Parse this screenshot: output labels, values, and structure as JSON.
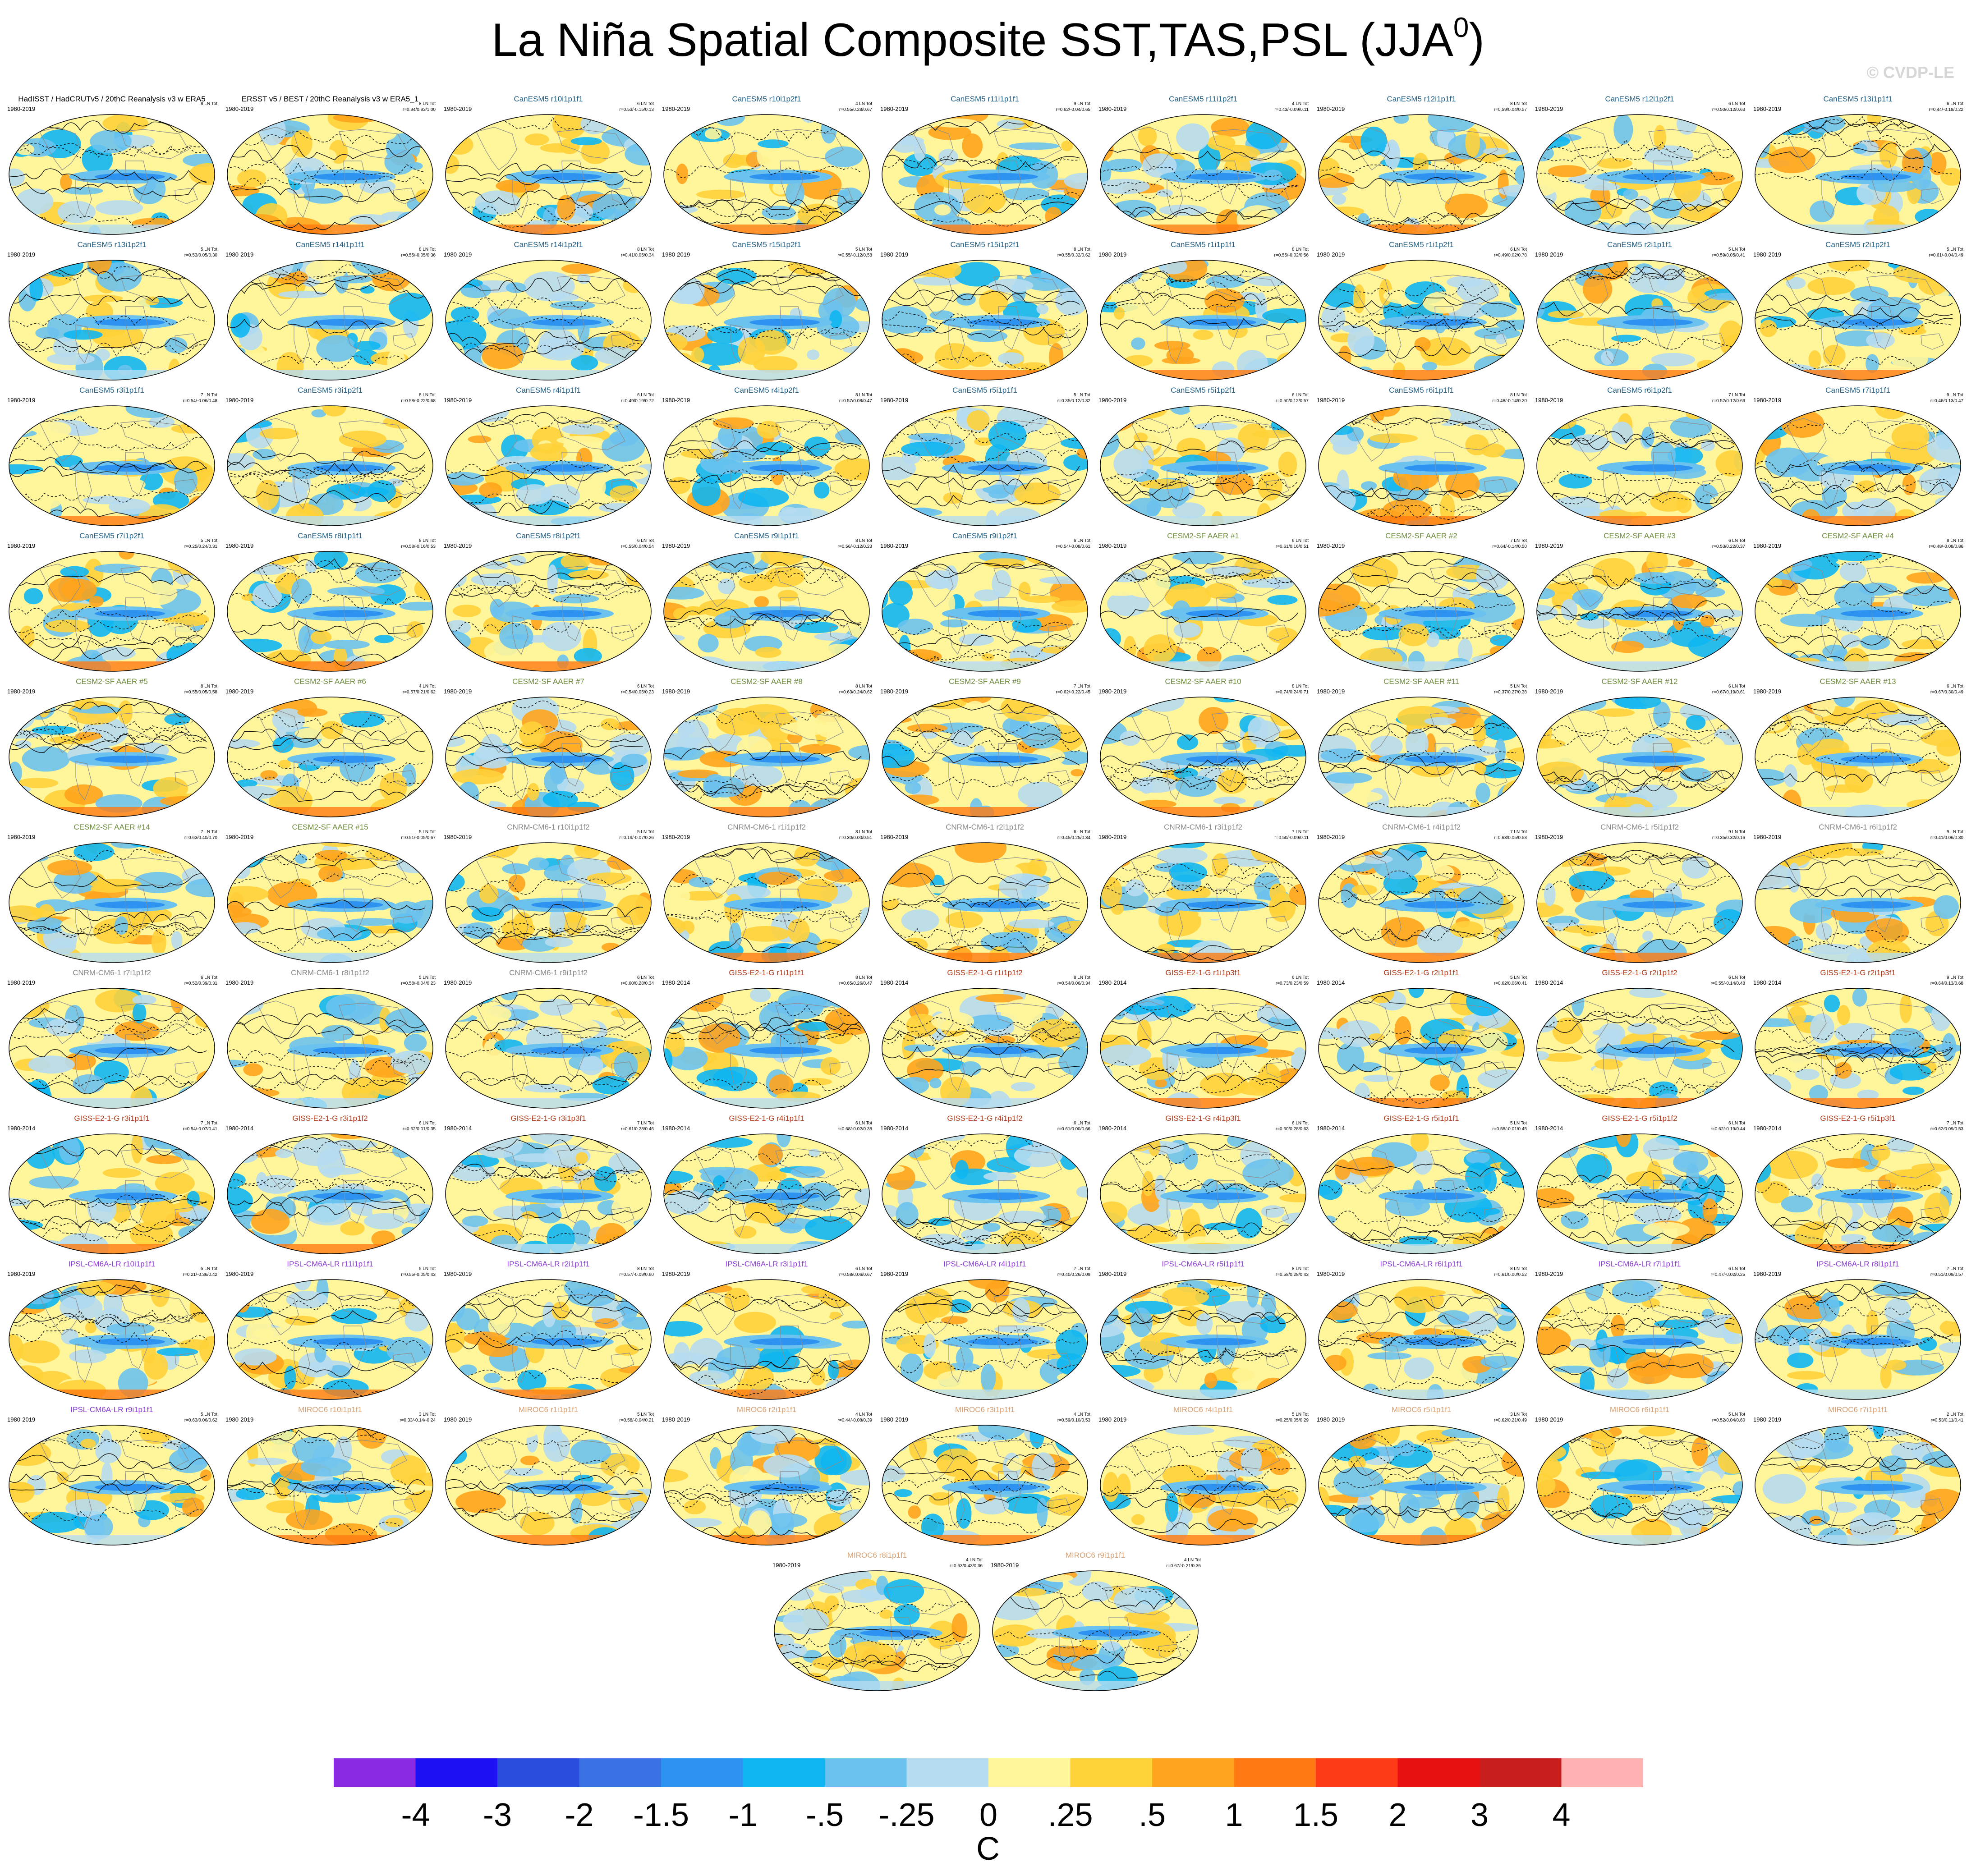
{
  "title": "La Niña Spatial Composite SST,TAS,PSL (JJA",
  "title_sup": "0",
  "title_close": ")",
  "watermark": "© CVDP-LE",
  "colorbar": {
    "colors": [
      "#8a2be2",
      "#1e10f5",
      "#2a4de0",
      "#3a72e6",
      "#2d92f0",
      "#10b6f2",
      "#6cc2ee",
      "#b6dcf0",
      "#fff59a",
      "#ffd23a",
      "#ffa41c",
      "#ff7a12",
      "#ff3a16",
      "#e81010",
      "#c81e1e",
      "#ffb2b2"
    ],
    "labels": [
      "-4",
      "-3",
      "-2",
      "-1.5",
      "-1",
      "-.5",
      "-.25",
      "0",
      ".25",
      ".5",
      "1",
      "1.5",
      "2",
      "3",
      "4"
    ],
    "unit": "C"
  },
  "panels": [
    {
      "title": "HadISST / HadCRUTv5 / 20thC Reanalysis v3 w ERA5",
      "years": "1980-2019",
      "count": "8 LN Tot",
      "stats": "",
      "color": "#000000"
    },
    {
      "title": "ERSST v5 / BEST / 20thC Reanalysis v3 w ERA5_1",
      "years": "1980-2019",
      "count": "8 LN Tot",
      "stats": "r=0.94/0.93/1.00",
      "color": "#000000"
    },
    {
      "title": "CanESM5 r10i1p1f1",
      "years": "1980-2019",
      "count": "6 LN Tot",
      "stats": "r=0.53/-0.15/0.13",
      "color": "#1f5f86"
    },
    {
      "title": "CanESM5 r10i1p2f1",
      "years": "1980-2019",
      "count": "4 LN Tot",
      "stats": "r=0.55/0.28/0.67",
      "color": "#1f5f86"
    },
    {
      "title": "CanESM5 r11i1p1f1",
      "years": "1980-2019",
      "count": "9 LN Tot",
      "stats": "r=0.62/-0.04/0.65",
      "color": "#1f5f86"
    },
    {
      "title": "CanESM5 r11i1p2f1",
      "years": "1980-2019",
      "count": "4 LN Tot",
      "stats": "r=0.43/-0.09/0.11",
      "color": "#1f5f86"
    },
    {
      "title": "CanESM5 r12i1p1f1",
      "years": "1980-2019",
      "count": "8 LN Tot",
      "stats": "r=0.59/0.04/0.57",
      "color": "#1f5f86"
    },
    {
      "title": "CanESM5 r12i1p2f1",
      "years": "1980-2019",
      "count": "6 LN Tot",
      "stats": "r=0.50/0.12/0.63",
      "color": "#1f5f86"
    },
    {
      "title": "CanESM5 r13i1p1f1",
      "years": "1980-2019",
      "count": "6 LN Tot",
      "stats": "r=0.44/-0.18/0.22",
      "color": "#1f5f86"
    },
    {
      "title": "CanESM5 r13i1p2f1",
      "years": "1980-2019",
      "count": "5 LN Tot",
      "stats": "r=0.53/0.05/0.30",
      "color": "#1f5f86"
    },
    {
      "title": "CanESM5 r14i1p1f1",
      "years": "1980-2019",
      "count": "8 LN Tot",
      "stats": "r=0.55/-0.05/0.36",
      "color": "#1f5f86"
    },
    {
      "title": "CanESM5 r14i1p2f1",
      "years": "1980-2019",
      "count": "8 LN Tot",
      "stats": "r=0.41/0.05/0.34",
      "color": "#1f5f86"
    },
    {
      "title": "CanESM5 r15i1p2f1",
      "years": "1980-2019",
      "count": "5 LN Tot",
      "stats": "r=0.55/-0.12/0.58",
      "color": "#1f5f86"
    },
    {
      "title": "CanESM5 r15i1p2f1",
      "years": "1980-2019",
      "count": "8 LN Tot",
      "stats": "r=0.55/0.32/0.62",
      "color": "#1f5f86"
    },
    {
      "title": "CanESM5 r1i1p1f1",
      "years": "1980-2019",
      "count": "8 LN Tot",
      "stats": "r=0.55/-0.02/0.56",
      "color": "#1f5f86"
    },
    {
      "title": "CanESM5 r1i1p2f1",
      "years": "1980-2019",
      "count": "6 LN Tot",
      "stats": "r=0.49/0.02/0.78",
      "color": "#1f5f86"
    },
    {
      "title": "CanESM5 r2i1p1f1",
      "years": "1980-2019",
      "count": "5 LN Tot",
      "stats": "r=0.59/0.05/0.41",
      "color": "#1f5f86"
    },
    {
      "title": "CanESM5 r2i1p2f1",
      "years": "1980-2019",
      "count": "5 LN Tot",
      "stats": "r=0.61/-0.04/0.49",
      "color": "#1f5f86"
    },
    {
      "title": "CanESM5 r3i1p1f1",
      "years": "1980-2019",
      "count": "7 LN Tot",
      "stats": "r=0.54/-0.06/0.48",
      "color": "#1f5f86"
    },
    {
      "title": "CanESM5 r3i1p2f1",
      "years": "1980-2019",
      "count": "8 LN Tot",
      "stats": "r=0.58/-0.22/0.68",
      "color": "#1f5f86"
    },
    {
      "title": "CanESM5 r4i1p1f1",
      "years": "1980-2019",
      "count": "6 LN Tot",
      "stats": "r=0.49/0.19/0.72",
      "color": "#1f5f86"
    },
    {
      "title": "CanESM5 r4i1p2f1",
      "years": "1980-2019",
      "count": "8 LN Tot",
      "stats": "r=0.57/0.08/0.47",
      "color": "#1f5f86"
    },
    {
      "title": "CanESM5 r5i1p1f1",
      "years": "1980-2019",
      "count": "5 LN Tot",
      "stats": "r=0.35/0.12/0.32",
      "color": "#1f5f86"
    },
    {
      "title": "CanESM5 r5i1p2f1",
      "years": "1980-2019",
      "count": "6 LN Tot",
      "stats": "r=0.50/0.12/0.57",
      "color": "#1f5f86"
    },
    {
      "title": "CanESM5 r6i1p1f1",
      "years": "1980-2019",
      "count": "8 LN Tot",
      "stats": "r=0.48/-0.14/0.20",
      "color": "#1f5f86"
    },
    {
      "title": "CanESM5 r6i1p2f1",
      "years": "1980-2019",
      "count": "7 LN Tot",
      "stats": "r=0.52/0.12/0.63",
      "color": "#1f5f86"
    },
    {
      "title": "CanESM5 r7i1p1f1",
      "years": "1980-2019",
      "count": "9 LN Tot",
      "stats": "r=0.46/0.13/0.47",
      "color": "#1f5f86"
    },
    {
      "title": "CanESM5 r7i1p2f1",
      "years": "1980-2019",
      "count": "5 LN Tot",
      "stats": "r=0.25/0.24/0.31",
      "color": "#1f5f86"
    },
    {
      "title": "CanESM5 r8i1p1f1",
      "years": "1980-2019",
      "count": "8 LN Tot",
      "stats": "r=0.58/-0.16/0.53",
      "color": "#1f5f86"
    },
    {
      "title": "CanESM5 r8i1p2f1",
      "years": "1980-2019",
      "count": "6 LN Tot",
      "stats": "r=0.55/0.04/0.54",
      "color": "#1f5f86"
    },
    {
      "title": "CanESM5 r9i1p1f1",
      "years": "1980-2019",
      "count": "8 LN Tot",
      "stats": "r=0.56/-0.12/0.23",
      "color": "#1f5f86"
    },
    {
      "title": "CanESM5 r9i1p2f1",
      "years": "1980-2019",
      "count": "6 LN Tot",
      "stats": "r=0.54/-0.08/0.61",
      "color": "#1f5f86"
    },
    {
      "title": "CESM2-SF AAER #1",
      "years": "1980-2019",
      "count": "6 LN Tot",
      "stats": "r=0.61/0.16/0.51",
      "color": "#6e8c3c"
    },
    {
      "title": "CESM2-SF AAER #2",
      "years": "1980-2019",
      "count": "7 LN Tot",
      "stats": "r=0.64/-0.14/0.50",
      "color": "#6e8c3c"
    },
    {
      "title": "CESM2-SF AAER #3",
      "years": "1980-2019",
      "count": "6 LN Tot",
      "stats": "r=0.53/0.22/0.37",
      "color": "#6e8c3c"
    },
    {
      "title": "CESM2-SF AAER #4",
      "years": "1980-2019",
      "count": "8 LN Tot",
      "stats": "r=0.48/-0.08/0.86",
      "color": "#6e8c3c"
    },
    {
      "title": "CESM2-SF AAER #5",
      "years": "1980-2019",
      "count": "8 LN Tot",
      "stats": "r=0.55/0.05/0.58",
      "color": "#6e8c3c"
    },
    {
      "title": "CESM2-SF AAER #6",
      "years": "1980-2019",
      "count": "4 LN Tot",
      "stats": "r=0.57/0.21/0.62",
      "color": "#6e8c3c"
    },
    {
      "title": "CESM2-SF AAER #7",
      "years": "1980-2019",
      "count": "6 LN Tot",
      "stats": "r=0.54/0.05/0.23",
      "color": "#6e8c3c"
    },
    {
      "title": "CESM2-SF AAER #8",
      "years": "1980-2019",
      "count": "8 LN Tot",
      "stats": "r=0.63/0.24/0.62",
      "color": "#6e8c3c"
    },
    {
      "title": "CESM2-SF AAER #9",
      "years": "1980-2019",
      "count": "7 LN Tot",
      "stats": "r=0.62/-0.22/0.45",
      "color": "#6e8c3c"
    },
    {
      "title": "CESM2-SF AAER #10",
      "years": "1980-2019",
      "count": "8 LN Tot",
      "stats": "r=0.74/0.24/0.71",
      "color": "#6e8c3c"
    },
    {
      "title": "CESM2-SF AAER #11",
      "years": "1980-2019",
      "count": "5 LN Tot",
      "stats": "r=0.37/0.27/0.38",
      "color": "#6e8c3c"
    },
    {
      "title": "CESM2-SF AAER #12",
      "years": "1980-2019",
      "count": "6 LN Tot",
      "stats": "r=0.67/0.19/0.61",
      "color": "#6e8c3c"
    },
    {
      "title": "CESM2-SF AAER #13",
      "years": "1980-2019",
      "count": "6 LN Tot",
      "stats": "r=0.67/0.30/0.49",
      "color": "#6e8c3c"
    },
    {
      "title": "CESM2-SF AAER #14",
      "years": "1980-2019",
      "count": "7 LN Tot",
      "stats": "r=0.63/0.40/0.70",
      "color": "#6e8c3c"
    },
    {
      "title": "CESM2-SF AAER #15",
      "years": "1980-2019",
      "count": "5 LN Tot",
      "stats": "r=0.51/-0.05/0.67",
      "color": "#6e8c3c"
    },
    {
      "title": "CNRM-CM6-1 r10i1p1f2",
      "years": "1980-2019",
      "count": "5 LN Tot",
      "stats": "r=0.19/-0.07/0.26",
      "color": "#8a8a8a"
    },
    {
      "title": "CNRM-CM6-1 r1i1p1f2",
      "years": "1980-2019",
      "count": "8 LN Tot",
      "stats": "r=0.30/0.00/0.51",
      "color": "#8a8a8a"
    },
    {
      "title": "CNRM-CM6-1 r2i1p1f2",
      "years": "1980-2019",
      "count": "6 LN Tot",
      "stats": "r=0.45/0.25/0.34",
      "color": "#8a8a8a"
    },
    {
      "title": "CNRM-CM6-1 r3i1p1f2",
      "years": "1980-2019",
      "count": "7 LN Tot",
      "stats": "r=0.50/-0.09/0.11",
      "color": "#8a8a8a"
    },
    {
      "title": "CNRM-CM6-1 r4i1p1f2",
      "years": "1980-2019",
      "count": "7 LN Tot",
      "stats": "r=0.63/0.05/0.53",
      "color": "#8a8a8a"
    },
    {
      "title": "CNRM-CM6-1 r5i1p1f2",
      "years": "1980-2019",
      "count": "9 LN Tot",
      "stats": "r=0.35/0.32/0.16",
      "color": "#8a8a8a"
    },
    {
      "title": "CNRM-CM6-1 r6i1p1f2",
      "years": "1980-2019",
      "count": "9 LN Tot",
      "stats": "r=0.41/0.06/0.30",
      "color": "#8a8a8a"
    },
    {
      "title": "CNRM-CM6-1 r7i1p1f2",
      "years": "1980-2019",
      "count": "6 LN Tot",
      "stats": "r=0.52/0.39/0.31",
      "color": "#8a8a8a"
    },
    {
      "title": "CNRM-CM6-1 r8i1p1f2",
      "years": "1980-2019",
      "count": "5 LN Tot",
      "stats": "r=0.58/-0.04/0.23",
      "color": "#8a8a8a"
    },
    {
      "title": "CNRM-CM6-1 r9i1p1f2",
      "years": "1980-2019",
      "count": "6 LN Tot",
      "stats": "r=0.60/0.28/0.34",
      "color": "#8a8a8a"
    },
    {
      "title": "GISS-E2-1-G r1i1p1f1",
      "years": "1980-2014",
      "count": "8 LN Tot",
      "stats": "r=0.65/0.26/0.47",
      "color": "#b03a1a"
    },
    {
      "title": "GISS-E2-1-G r1i1p1f2",
      "years": "1980-2014",
      "count": "8 LN Tot",
      "stats": "r=0.54/0.06/0.34",
      "color": "#b03a1a"
    },
    {
      "title": "GISS-E2-1-G r1i1p3f1",
      "years": "1980-2014",
      "count": "6 LN Tot",
      "stats": "r=0.73/0.23/0.59",
      "color": "#b03a1a"
    },
    {
      "title": "GISS-E2-1-G r2i1p1f1",
      "years": "1980-2014",
      "count": "5 LN Tot",
      "stats": "r=0.62/0.06/0.41",
      "color": "#b03a1a"
    },
    {
      "title": "GISS-E2-1-G r2i1p1f2",
      "years": "1980-2014",
      "count": "6 LN Tot",
      "stats": "r=0.55/-0.14/0.48",
      "color": "#b03a1a"
    },
    {
      "title": "GISS-E2-1-G r2i1p3f1",
      "years": "1980-2014",
      "count": "9 LN Tot",
      "stats": "r=0.64/0.13/0.68",
      "color": "#b03a1a"
    },
    {
      "title": "GISS-E2-1-G r3i1p1f1",
      "years": "1980-2014",
      "count": "7 LN Tot",
      "stats": "r=0.54/-0.07/0.41",
      "color": "#b03a1a"
    },
    {
      "title": "GISS-E2-1-G r3i1p1f2",
      "years": "1980-2014",
      "count": "6 LN Tot",
      "stats": "r=0.62/0.01/0.35",
      "color": "#b03a1a"
    },
    {
      "title": "GISS-E2-1-G r3i1p3f1",
      "years": "1980-2014",
      "count": "7 LN Tot",
      "stats": "r=0.61/0.28/0.46",
      "color": "#b03a1a"
    },
    {
      "title": "GISS-E2-1-G r4i1p1f1",
      "years": "1980-2014",
      "count": "6 LN Tot",
      "stats": "r=0.68/-0.02/0.38",
      "color": "#b03a1a"
    },
    {
      "title": "GISS-E2-1-G r4i1p1f2",
      "years": "1980-2014",
      "count": "6 LN Tot",
      "stats": "r=0.61/0.00/0.66",
      "color": "#b03a1a"
    },
    {
      "title": "GISS-E2-1-G r4i1p3f1",
      "years": "1980-2014",
      "count": "6 LN Tot",
      "stats": "r=0.60/0.28/0.63",
      "color": "#b03a1a"
    },
    {
      "title": "GISS-E2-1-G r5i1p1f1",
      "years": "1980-2014",
      "count": "5 LN Tot",
      "stats": "r=0.58/-0.01/0.45",
      "color": "#b03a1a"
    },
    {
      "title": "GISS-E2-1-G r5i1p1f2",
      "years": "1980-2014",
      "count": "6 LN Tot",
      "stats": "r=0.62/-0.19/0.44",
      "color": "#b03a1a"
    },
    {
      "title": "GISS-E2-1-G r5i1p3f1",
      "years": "1980-2014",
      "count": "7 LN Tot",
      "stats": "r=0.62/0.09/0.53",
      "color": "#b03a1a"
    },
    {
      "title": "IPSL-CM6A-LR r10i1p1f1",
      "years": "1980-2019",
      "count": "5 LN Tot",
      "stats": "r=0.21/-0.36/0.42",
      "color": "#8a3ad6"
    },
    {
      "title": "IPSL-CM6A-LR r11i1p1f1",
      "years": "1980-2019",
      "count": "5 LN Tot",
      "stats": "r=0.55/-0.05/0.43",
      "color": "#8a3ad6"
    },
    {
      "title": "IPSL-CM6A-LR r2i1p1f1",
      "years": "1980-2019",
      "count": "8 LN Tot",
      "stats": "r=0.57/-0.09/0.60",
      "color": "#8a3ad6"
    },
    {
      "title": "IPSL-CM6A-LR r3i1p1f1",
      "years": "1980-2019",
      "count": "6 LN Tot",
      "stats": "r=0.58/0.06/0.67",
      "color": "#8a3ad6"
    },
    {
      "title": "IPSL-CM6A-LR r4i1p1f1",
      "years": "1980-2019",
      "count": "7 LN Tot",
      "stats": "r=0.40/0.26/0.09",
      "color": "#8a3ad6"
    },
    {
      "title": "IPSL-CM6A-LR r5i1p1f1",
      "years": "1980-2019",
      "count": "8 LN Tot",
      "stats": "r=0.58/0.28/0.43",
      "color": "#8a3ad6"
    },
    {
      "title": "IPSL-CM6A-LR r6i1p1f1",
      "years": "1980-2019",
      "count": "8 LN Tot",
      "stats": "r=0.61/0.00/0.52",
      "color": "#8a3ad6"
    },
    {
      "title": "IPSL-CM6A-LR r7i1p1f1",
      "years": "1980-2019",
      "count": "6 LN Tot",
      "stats": "r=0.47/-0.02/0.25",
      "color": "#8a3ad6"
    },
    {
      "title": "IPSL-CM6A-LR r8i1p1f1",
      "years": "1980-2019",
      "count": "7 LN Tot",
      "stats": "r=0.51/0.09/0.57",
      "color": "#8a3ad6"
    },
    {
      "title": "IPSL-CM6A-LR r9i1p1f1",
      "years": "1980-2019",
      "count": "5 LN Tot",
      "stats": "r=0.63/0.06/0.62",
      "color": "#8a3ad6"
    },
    {
      "title": "MIROC6 r10i1p1f1",
      "years": "1980-2019",
      "count": "3 LN Tot",
      "stats": "r=0.33/-0.14/-0.24",
      "color": "#d8a070"
    },
    {
      "title": "MIROC6 r1i1p1f1",
      "years": "1980-2019",
      "count": "5 LN Tot",
      "stats": "r=0.58/-0.04/0.21",
      "color": "#d8a070"
    },
    {
      "title": "MIROC6 r2i1p1f1",
      "years": "1980-2019",
      "count": "4 LN Tot",
      "stats": "r=0.44/-0.08/0.39",
      "color": "#d8a070"
    },
    {
      "title": "MIROC6 r3i1p1f1",
      "years": "1980-2019",
      "count": "4 LN Tot",
      "stats": "r=0.59/0.10/0.53",
      "color": "#d8a070"
    },
    {
      "title": "MIROC6 r4i1p1f1",
      "years": "1980-2019",
      "count": "5 LN Tot",
      "stats": "r=0.25/0.05/0.29",
      "color": "#d8a070"
    },
    {
      "title": "MIROC6 r5i1p1f1",
      "years": "1980-2019",
      "count": "3 LN Tot",
      "stats": "r=0.62/0.21/0.49",
      "color": "#d8a070"
    },
    {
      "title": "MIROC6 r6i1p1f1",
      "years": "1980-2019",
      "count": "5 LN Tot",
      "stats": "r=0.52/0.04/0.60",
      "color": "#d8a070"
    },
    {
      "title": "MIROC6 r7i1p1f1",
      "years": "1980-2019",
      "count": "2 LN Tot",
      "stats": "r=0.53/0.11/0.41",
      "color": "#d8a070"
    },
    {
      "title": "MIROC6 r8i1p1f1",
      "years": "1980-2019",
      "count": "4 LN Tot",
      "stats": "r=0.63/0.43/0.36",
      "color": "#d8a070"
    },
    {
      "title": "MIROC6 r9i1p1f1",
      "years": "1980-2019",
      "count": "4 LN Tot",
      "stats": "r=0.67/-0.21/0.36",
      "color": "#d8a070"
    }
  ]
}
